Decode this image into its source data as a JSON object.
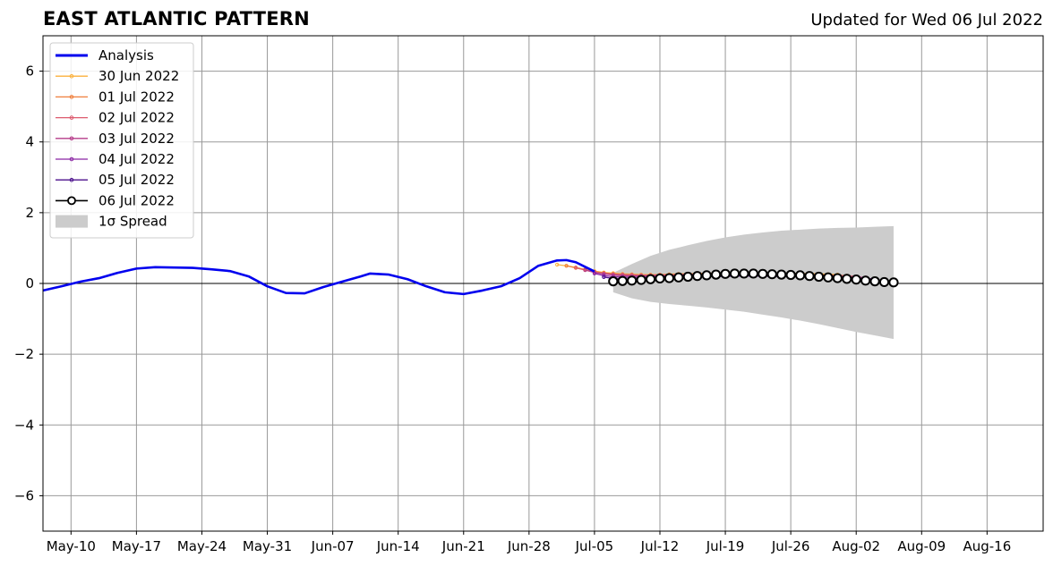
{
  "page": {
    "title": "EAST ATLANTIC PATTERN",
    "subtitle": "Updated for Wed 06 Jul 2022"
  },
  "chart_data": {
    "type": "line",
    "title": "EAST ATLANTIC PATTERN",
    "subtitle": "Updated for Wed 06 Jul 2022",
    "xlabel": "",
    "ylabel": "",
    "x_range": [
      "2022-05-07",
      "2022-08-22"
    ],
    "ylim": [
      -7,
      7
    ],
    "yticks": [
      -6,
      -4,
      -2,
      0,
      2,
      4,
      6
    ],
    "ytick_labels": [
      "−6",
      "−4",
      "−2",
      "0",
      "2",
      "4",
      "6"
    ],
    "xticks": [
      "2022-05-10",
      "2022-05-17",
      "2022-05-24",
      "2022-05-31",
      "2022-06-07",
      "2022-06-14",
      "2022-06-21",
      "2022-06-28",
      "2022-07-05",
      "2022-07-12",
      "2022-07-19",
      "2022-07-26",
      "2022-08-02",
      "2022-08-09",
      "2022-08-16"
    ],
    "xtick_labels": [
      "May-10",
      "May-17",
      "May-24",
      "May-31",
      "Jun-07",
      "Jun-14",
      "Jun-21",
      "Jun-28",
      "Jul-05",
      "Jul-12",
      "Jul-19",
      "Jul-26",
      "Aug-02",
      "Aug-09",
      "Aug-16"
    ],
    "grid": true,
    "zero_line": true,
    "legend": {
      "position": "top-left",
      "entries": [
        "Analysis",
        "30 Jun 2022",
        "01 Jul 2022",
        "02 Jul 2022",
        "03 Jul 2022",
        "04 Jul 2022",
        "05 Jul 2022",
        "06 Jul 2022",
        "1σ Spread"
      ]
    },
    "analysis": {
      "name": "Analysis",
      "color": "#0000ee",
      "x": [
        "2022-05-07",
        "2022-05-09",
        "2022-05-11",
        "2022-05-13",
        "2022-05-15",
        "2022-05-17",
        "2022-05-19",
        "2022-05-21",
        "2022-05-23",
        "2022-05-25",
        "2022-05-27",
        "2022-05-29",
        "2022-05-31",
        "2022-06-02",
        "2022-06-04",
        "2022-06-06",
        "2022-06-08",
        "2022-06-10",
        "2022-06-11",
        "2022-06-13",
        "2022-06-15",
        "2022-06-17",
        "2022-06-19",
        "2022-06-21",
        "2022-06-23",
        "2022-06-25",
        "2022-06-27",
        "2022-06-29",
        "2022-07-01",
        "2022-07-02",
        "2022-07-03",
        "2022-07-04",
        "2022-07-05"
      ],
      "y": [
        -0.2,
        -0.08,
        0.05,
        0.15,
        0.3,
        0.42,
        0.46,
        0.45,
        0.44,
        0.4,
        0.35,
        0.2,
        -0.08,
        -0.27,
        -0.28,
        -0.1,
        0.05,
        0.2,
        0.28,
        0.25,
        0.12,
        -0.08,
        -0.25,
        -0.3,
        -0.2,
        -0.08,
        0.15,
        0.5,
        0.65,
        0.66,
        0.6,
        0.47,
        0.34
      ]
    },
    "forecasts": [
      {
        "name": "30 Jun 2022",
        "color": "#fbb13c",
        "x": [
          "2022-07-01",
          "2022-07-02",
          "2022-07-03",
          "2022-07-04",
          "2022-07-05",
          "2022-07-06",
          "2022-07-07",
          "2022-07-08",
          "2022-07-09",
          "2022-07-10",
          "2022-07-11",
          "2022-07-12",
          "2022-07-13",
          "2022-07-14",
          "2022-07-15",
          "2022-07-16",
          "2022-07-17",
          "2022-07-18",
          "2022-07-19",
          "2022-07-20",
          "2022-07-21",
          "2022-07-22",
          "2022-07-23",
          "2022-07-24",
          "2022-07-25",
          "2022-07-26",
          "2022-07-27",
          "2022-07-28",
          "2022-07-29",
          "2022-07-30",
          "2022-07-31"
        ],
        "y": [
          0.53,
          0.5,
          0.45,
          0.4,
          0.35,
          0.31,
          0.29,
          0.27,
          0.26,
          0.25,
          0.25,
          0.25,
          0.26,
          0.27,
          0.27,
          0.28,
          0.29,
          0.29,
          0.3,
          0.3,
          0.3,
          0.3,
          0.3,
          0.3,
          0.29,
          0.29,
          0.28,
          0.28,
          0.27,
          0.26,
          0.25
        ]
      },
      {
        "name": "01 Jul 2022",
        "color": "#f07f3c",
        "x": [
          "2022-07-02",
          "2022-07-03",
          "2022-07-04",
          "2022-07-05",
          "2022-07-06",
          "2022-07-07",
          "2022-07-08",
          "2022-07-09",
          "2022-07-10",
          "2022-07-11",
          "2022-07-12",
          "2022-07-13",
          "2022-07-14",
          "2022-07-15",
          "2022-07-16",
          "2022-07-17",
          "2022-07-18",
          "2022-07-19",
          "2022-07-20",
          "2022-07-21",
          "2022-07-22",
          "2022-07-23",
          "2022-07-24",
          "2022-07-25",
          "2022-07-26",
          "2022-07-27",
          "2022-07-28",
          "2022-07-29",
          "2022-07-30",
          "2022-07-31",
          "2022-08-01"
        ],
        "y": [
          0.5,
          0.44,
          0.38,
          0.33,
          0.3,
          0.27,
          0.26,
          0.25,
          0.24,
          0.24,
          0.25,
          0.25,
          0.26,
          0.27,
          0.27,
          0.28,
          0.28,
          0.29,
          0.29,
          0.29,
          0.29,
          0.29,
          0.28,
          0.28,
          0.27,
          0.27,
          0.26,
          0.25,
          0.24,
          0.23,
          0.22
        ]
      },
      {
        "name": "02 Jul 2022",
        "color": "#dd5a6e",
        "x": [
          "2022-07-03",
          "2022-07-04",
          "2022-07-05",
          "2022-07-06",
          "2022-07-07",
          "2022-07-08",
          "2022-07-09",
          "2022-07-10",
          "2022-07-11",
          "2022-07-12",
          "2022-07-13",
          "2022-07-14",
          "2022-07-15",
          "2022-07-16",
          "2022-07-17",
          "2022-07-18",
          "2022-07-19",
          "2022-07-20",
          "2022-07-21",
          "2022-07-22",
          "2022-07-23",
          "2022-07-24",
          "2022-07-25",
          "2022-07-26",
          "2022-07-27",
          "2022-07-28",
          "2022-07-29",
          "2022-07-30",
          "2022-07-31",
          "2022-08-01",
          "2022-08-02"
        ],
        "y": [
          0.45,
          0.38,
          0.32,
          0.28,
          0.26,
          0.25,
          0.24,
          0.23,
          0.23,
          0.24,
          0.24,
          0.25,
          0.26,
          0.26,
          0.27,
          0.27,
          0.28,
          0.28,
          0.28,
          0.28,
          0.28,
          0.27,
          0.27,
          0.26,
          0.26,
          0.25,
          0.24,
          0.23,
          0.22,
          0.21,
          0.2
        ]
      },
      {
        "name": "03 Jul 2022",
        "color": "#b63c8a",
        "x": [
          "2022-07-04",
          "2022-07-05",
          "2022-07-06",
          "2022-07-07",
          "2022-07-08",
          "2022-07-09",
          "2022-07-10",
          "2022-07-11",
          "2022-07-12",
          "2022-07-13",
          "2022-07-14",
          "2022-07-15",
          "2022-07-16",
          "2022-07-17",
          "2022-07-18",
          "2022-07-19",
          "2022-07-20",
          "2022-07-21",
          "2022-07-22",
          "2022-07-23",
          "2022-07-24",
          "2022-07-25",
          "2022-07-26",
          "2022-07-27",
          "2022-07-28",
          "2022-07-29",
          "2022-07-30",
          "2022-07-31",
          "2022-08-01",
          "2022-08-02",
          "2022-08-03"
        ],
        "y": [
          0.38,
          0.31,
          0.27,
          0.24,
          0.22,
          0.21,
          0.21,
          0.21,
          0.22,
          0.22,
          0.23,
          0.24,
          0.24,
          0.25,
          0.25,
          0.26,
          0.26,
          0.26,
          0.26,
          0.26,
          0.25,
          0.25,
          0.24,
          0.24,
          0.23,
          0.22,
          0.21,
          0.2,
          0.19,
          0.18,
          0.17
        ]
      },
      {
        "name": "04 Jul 2022",
        "color": "#8a24a4",
        "x": [
          "2022-07-05",
          "2022-07-06",
          "2022-07-07",
          "2022-07-08",
          "2022-07-09",
          "2022-07-10",
          "2022-07-11",
          "2022-07-12",
          "2022-07-13",
          "2022-07-14",
          "2022-07-15",
          "2022-07-16",
          "2022-07-17",
          "2022-07-18",
          "2022-07-19",
          "2022-07-20",
          "2022-07-21",
          "2022-07-22",
          "2022-07-23",
          "2022-07-24",
          "2022-07-25",
          "2022-07-26",
          "2022-07-27",
          "2022-07-28",
          "2022-07-29",
          "2022-07-30",
          "2022-07-31",
          "2022-08-01",
          "2022-08-02",
          "2022-08-03",
          "2022-08-04"
        ],
        "y": [
          0.28,
          0.22,
          0.19,
          0.18,
          0.17,
          0.17,
          0.18,
          0.18,
          0.19,
          0.2,
          0.2,
          0.21,
          0.22,
          0.22,
          0.23,
          0.23,
          0.23,
          0.23,
          0.23,
          0.22,
          0.22,
          0.21,
          0.21,
          0.2,
          0.19,
          0.18,
          0.17,
          0.16,
          0.15,
          0.14,
          0.13
        ]
      },
      {
        "name": "05 Jul 2022",
        "color": "#4b108c",
        "x": [
          "2022-07-06",
          "2022-07-07",
          "2022-07-08",
          "2022-07-09",
          "2022-07-10",
          "2022-07-11",
          "2022-07-12",
          "2022-07-13",
          "2022-07-14",
          "2022-07-15",
          "2022-07-16",
          "2022-07-17",
          "2022-07-18",
          "2022-07-19",
          "2022-07-20",
          "2022-07-21",
          "2022-07-22",
          "2022-07-23",
          "2022-07-24",
          "2022-07-25",
          "2022-07-26",
          "2022-07-27",
          "2022-07-28",
          "2022-07-29",
          "2022-07-30",
          "2022-07-31",
          "2022-08-01",
          "2022-08-02",
          "2022-08-03",
          "2022-08-04",
          "2022-08-05"
        ],
        "y": [
          0.18,
          0.14,
          0.12,
          0.12,
          0.12,
          0.13,
          0.14,
          0.15,
          0.16,
          0.17,
          0.18,
          0.19,
          0.2,
          0.2,
          0.21,
          0.21,
          0.21,
          0.21,
          0.2,
          0.2,
          0.19,
          0.19,
          0.18,
          0.17,
          0.16,
          0.15,
          0.14,
          0.12,
          0.11,
          0.1,
          0.09
        ]
      },
      {
        "name": "06 Jul 2022",
        "color": "#000000",
        "x": [
          "2022-07-07",
          "2022-07-08",
          "2022-07-09",
          "2022-07-10",
          "2022-07-11",
          "2022-07-12",
          "2022-07-13",
          "2022-07-14",
          "2022-07-15",
          "2022-07-16",
          "2022-07-17",
          "2022-07-18",
          "2022-07-19",
          "2022-07-20",
          "2022-07-21",
          "2022-07-22",
          "2022-07-23",
          "2022-07-24",
          "2022-07-25",
          "2022-07-26",
          "2022-07-27",
          "2022-07-28",
          "2022-07-29",
          "2022-07-30",
          "2022-07-31",
          "2022-08-01",
          "2022-08-02",
          "2022-08-03",
          "2022-08-04",
          "2022-08-05",
          "2022-08-06"
        ],
        "y": [
          0.06,
          0.07,
          0.08,
          0.1,
          0.12,
          0.14,
          0.15,
          0.17,
          0.19,
          0.21,
          0.23,
          0.25,
          0.27,
          0.28,
          0.28,
          0.28,
          0.27,
          0.26,
          0.25,
          0.24,
          0.23,
          0.21,
          0.19,
          0.17,
          0.15,
          0.13,
          0.11,
          0.08,
          0.06,
          0.04,
          0.03
        ]
      }
    ],
    "spread": {
      "name": "1σ Spread",
      "color": "#cccccc",
      "x": [
        "2022-07-07",
        "2022-07-09",
        "2022-07-11",
        "2022-07-13",
        "2022-07-15",
        "2022-07-17",
        "2022-07-19",
        "2022-07-21",
        "2022-07-23",
        "2022-07-25",
        "2022-07-27",
        "2022-07-29",
        "2022-07-31",
        "2022-08-02",
        "2022-08-04",
        "2022-08-06"
      ],
      "upper": [
        0.3,
        0.55,
        0.78,
        0.95,
        1.08,
        1.2,
        1.3,
        1.38,
        1.44,
        1.49,
        1.52,
        1.55,
        1.57,
        1.58,
        1.6,
        1.62
      ],
      "lower": [
        -0.25,
        -0.42,
        -0.52,
        -0.58,
        -0.63,
        -0.68,
        -0.74,
        -0.8,
        -0.88,
        -0.96,
        -1.05,
        -1.15,
        -1.26,
        -1.37,
        -1.47,
        -1.57
      ]
    }
  }
}
